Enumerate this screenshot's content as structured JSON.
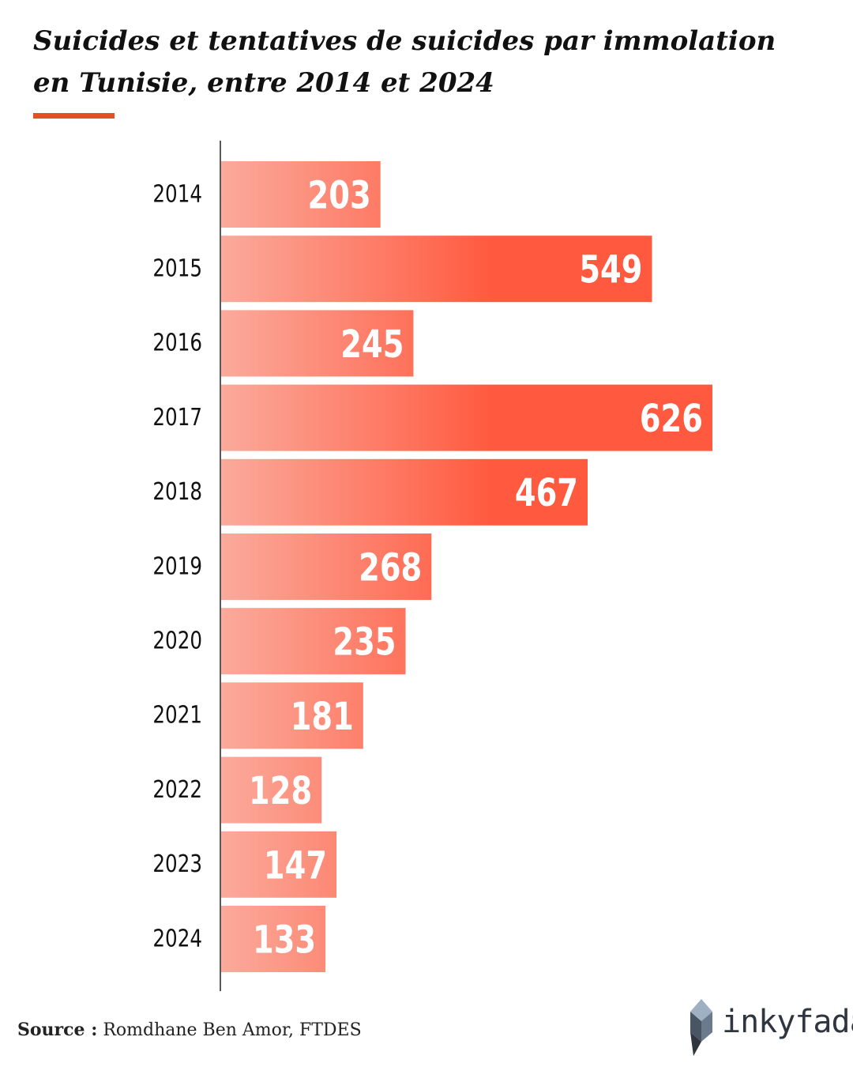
{
  "title": "Suicides et tentatives de suicides par immolation en Tunisie, entre 2014 et 2024",
  "source_label": "Source :",
  "source_text": "Romdhane Ben Amor, FTDES",
  "logo_text": "inkyfada",
  "colors": {
    "accent": "#e0531f",
    "bar_start": "#fbaa9c",
    "bar_end": "#ff5a3f",
    "label_text": "#ffffff"
  },
  "chart_data": {
    "type": "bar",
    "orientation": "horizontal",
    "categories": [
      "2014",
      "2015",
      "2016",
      "2017",
      "2018",
      "2019",
      "2020",
      "2021",
      "2022",
      "2023",
      "2024"
    ],
    "values": [
      203,
      549,
      245,
      626,
      467,
      268,
      235,
      181,
      128,
      147,
      133
    ],
    "xlim": [
      0,
      626
    ],
    "grid": false,
    "legend": "none"
  }
}
